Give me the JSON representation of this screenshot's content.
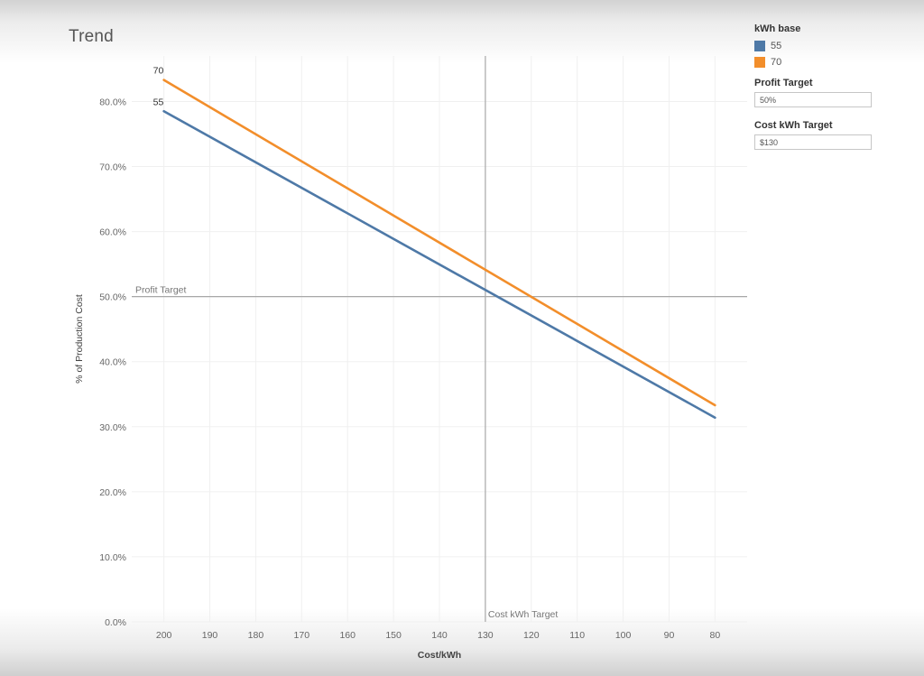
{
  "sheet": {
    "title": "Trend"
  },
  "legend": {
    "title": "kWh base",
    "items": [
      {
        "label": "55",
        "color": "#4e79a7"
      },
      {
        "label": "70",
        "color": "#f28e2b"
      }
    ]
  },
  "parameters": {
    "profit_target": {
      "title": "Profit Target",
      "value": "50%"
    },
    "cost_kwh_target": {
      "title": "Cost kWh Target",
      "value": "$130"
    }
  },
  "chart_data": {
    "type": "line",
    "xlabel": "Cost/kWh",
    "ylabel": "% of Production Cost",
    "x_reversed": true,
    "x": [
      200,
      80
    ],
    "xlim": [
      207,
      73
    ],
    "ylim": [
      0,
      87
    ],
    "x_ticks": [
      "200",
      "190",
      "180",
      "170",
      "160",
      "150",
      "140",
      "130",
      "120",
      "110",
      "100",
      "90",
      "80"
    ],
    "y_ticks": [
      "0.0%",
      "10.0%",
      "20.0%",
      "30.0%",
      "40.0%",
      "50.0%",
      "60.0%",
      "70.0%",
      "80.0%"
    ],
    "grid": true,
    "series": [
      {
        "name": "55",
        "color": "#4e79a7",
        "values": [
          78.5,
          31.4
        ]
      },
      {
        "name": "70",
        "color": "#f28e2b",
        "values": [
          83.3,
          33.3
        ]
      }
    ],
    "reference_lines": [
      {
        "axis": "y",
        "value": 50,
        "label": "Profit Target"
      },
      {
        "axis": "x",
        "value": 130,
        "label": "Cost kWh Target"
      }
    ],
    "legend_position": "right"
  }
}
